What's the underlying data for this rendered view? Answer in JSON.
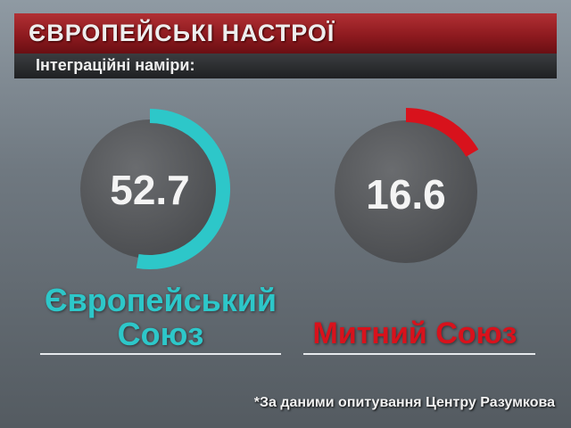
{
  "header": {
    "title": "ЄВРОПЕЙСЬКІ НАСТРОЇ",
    "subtitle": "Інтеграційні наміри:"
  },
  "chart_data": {
    "type": "gauge",
    "unit": "percent",
    "max": 100,
    "series": [
      {
        "name_line1": "Європейський",
        "name_line2": "Союз",
        "value": 52.7,
        "value_label": "52.7",
        "color": "#2dc7c9"
      },
      {
        "name": "Митний Союз",
        "value": 16.6,
        "value_label": "16.6",
        "color": "#d8121c"
      }
    ]
  },
  "footnote": "*За даними опитування Центру Разумкова"
}
